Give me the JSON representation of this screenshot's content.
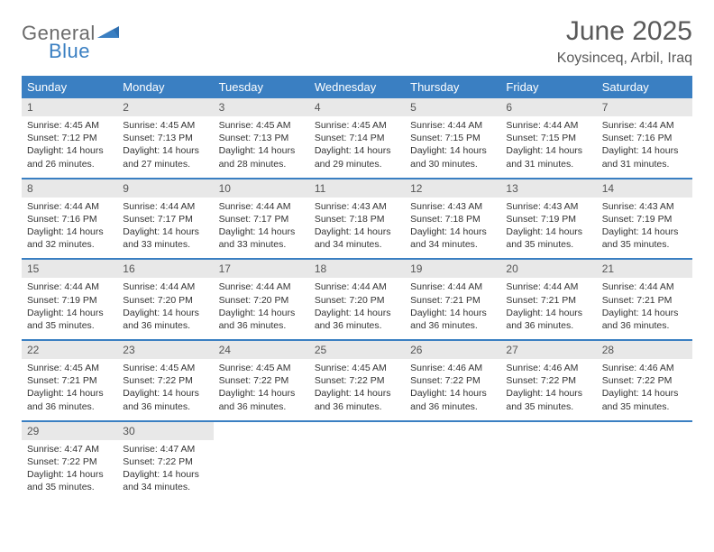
{
  "logo": {
    "word1": "General",
    "word2": "Blue",
    "shape_color": "#2f6fb0"
  },
  "header": {
    "title": "June 2025",
    "location": "Koysinceq, Arbil, Iraq"
  },
  "colors": {
    "header_bar": "#3a7fc2",
    "header_text": "#ffffff",
    "daynum_bg": "#e8e8e8",
    "daynum_text": "#555555",
    "body_text": "#333333",
    "week_divider": "#3a7fc2",
    "title_text": "#595959"
  },
  "weekdays": [
    "Sunday",
    "Monday",
    "Tuesday",
    "Wednesday",
    "Thursday",
    "Friday",
    "Saturday"
  ],
  "weeks": [
    [
      {
        "n": "1",
        "sr": "4:45 AM",
        "ss": "7:12 PM",
        "dl": "14 hours and 26 minutes."
      },
      {
        "n": "2",
        "sr": "4:45 AM",
        "ss": "7:13 PM",
        "dl": "14 hours and 27 minutes."
      },
      {
        "n": "3",
        "sr": "4:45 AM",
        "ss": "7:13 PM",
        "dl": "14 hours and 28 minutes."
      },
      {
        "n": "4",
        "sr": "4:45 AM",
        "ss": "7:14 PM",
        "dl": "14 hours and 29 minutes."
      },
      {
        "n": "5",
        "sr": "4:44 AM",
        "ss": "7:15 PM",
        "dl": "14 hours and 30 minutes."
      },
      {
        "n": "6",
        "sr": "4:44 AM",
        "ss": "7:15 PM",
        "dl": "14 hours and 31 minutes."
      },
      {
        "n": "7",
        "sr": "4:44 AM",
        "ss": "7:16 PM",
        "dl": "14 hours and 31 minutes."
      }
    ],
    [
      {
        "n": "8",
        "sr": "4:44 AM",
        "ss": "7:16 PM",
        "dl": "14 hours and 32 minutes."
      },
      {
        "n": "9",
        "sr": "4:44 AM",
        "ss": "7:17 PM",
        "dl": "14 hours and 33 minutes."
      },
      {
        "n": "10",
        "sr": "4:44 AM",
        "ss": "7:17 PM",
        "dl": "14 hours and 33 minutes."
      },
      {
        "n": "11",
        "sr": "4:43 AM",
        "ss": "7:18 PM",
        "dl": "14 hours and 34 minutes."
      },
      {
        "n": "12",
        "sr": "4:43 AM",
        "ss": "7:18 PM",
        "dl": "14 hours and 34 minutes."
      },
      {
        "n": "13",
        "sr": "4:43 AM",
        "ss": "7:19 PM",
        "dl": "14 hours and 35 minutes."
      },
      {
        "n": "14",
        "sr": "4:43 AM",
        "ss": "7:19 PM",
        "dl": "14 hours and 35 minutes."
      }
    ],
    [
      {
        "n": "15",
        "sr": "4:44 AM",
        "ss": "7:19 PM",
        "dl": "14 hours and 35 minutes."
      },
      {
        "n": "16",
        "sr": "4:44 AM",
        "ss": "7:20 PM",
        "dl": "14 hours and 36 minutes."
      },
      {
        "n": "17",
        "sr": "4:44 AM",
        "ss": "7:20 PM",
        "dl": "14 hours and 36 minutes."
      },
      {
        "n": "18",
        "sr": "4:44 AM",
        "ss": "7:20 PM",
        "dl": "14 hours and 36 minutes."
      },
      {
        "n": "19",
        "sr": "4:44 AM",
        "ss": "7:21 PM",
        "dl": "14 hours and 36 minutes."
      },
      {
        "n": "20",
        "sr": "4:44 AM",
        "ss": "7:21 PM",
        "dl": "14 hours and 36 minutes."
      },
      {
        "n": "21",
        "sr": "4:44 AM",
        "ss": "7:21 PM",
        "dl": "14 hours and 36 minutes."
      }
    ],
    [
      {
        "n": "22",
        "sr": "4:45 AM",
        "ss": "7:21 PM",
        "dl": "14 hours and 36 minutes."
      },
      {
        "n": "23",
        "sr": "4:45 AM",
        "ss": "7:22 PM",
        "dl": "14 hours and 36 minutes."
      },
      {
        "n": "24",
        "sr": "4:45 AM",
        "ss": "7:22 PM",
        "dl": "14 hours and 36 minutes."
      },
      {
        "n": "25",
        "sr": "4:45 AM",
        "ss": "7:22 PM",
        "dl": "14 hours and 36 minutes."
      },
      {
        "n": "26",
        "sr": "4:46 AM",
        "ss": "7:22 PM",
        "dl": "14 hours and 36 minutes."
      },
      {
        "n": "27",
        "sr": "4:46 AM",
        "ss": "7:22 PM",
        "dl": "14 hours and 35 minutes."
      },
      {
        "n": "28",
        "sr": "4:46 AM",
        "ss": "7:22 PM",
        "dl": "14 hours and 35 minutes."
      }
    ],
    [
      {
        "n": "29",
        "sr": "4:47 AM",
        "ss": "7:22 PM",
        "dl": "14 hours and 35 minutes."
      },
      {
        "n": "30",
        "sr": "4:47 AM",
        "ss": "7:22 PM",
        "dl": "14 hours and 34 minutes."
      },
      null,
      null,
      null,
      null,
      null
    ]
  ],
  "labels": {
    "sunrise": "Sunrise:",
    "sunset": "Sunset:",
    "daylight": "Daylight:"
  }
}
